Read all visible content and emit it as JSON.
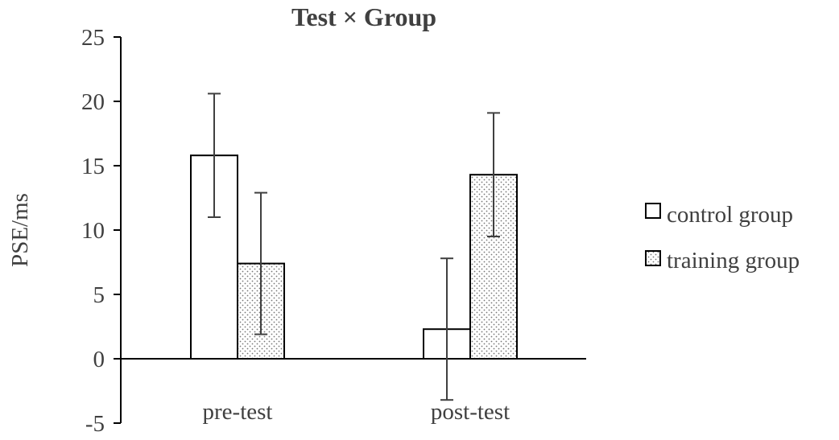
{
  "chart_data": {
    "type": "bar",
    "title": "Test × Group",
    "xlabel": "",
    "ylabel": "PSE/ms",
    "ylim": [
      -5,
      25
    ],
    "yticks": [
      25,
      20,
      15,
      10,
      5,
      0,
      -5
    ],
    "categories": [
      "pre-test",
      "post-test"
    ],
    "series": [
      {
        "name": "control group",
        "values": [
          15.8,
          2.3
        ],
        "error_low": [
          11.0,
          -3.2
        ],
        "error_high": [
          20.6,
          7.8
        ],
        "fill": "white"
      },
      {
        "name": "training group",
        "values": [
          7.4,
          14.3
        ],
        "error_low": [
          1.9,
          9.5
        ],
        "error_high": [
          12.9,
          19.1
        ],
        "fill": "dotted"
      }
    ],
    "legend_position": "right",
    "grid": false
  },
  "colors": {
    "bar_stroke": "#000000",
    "axis": "#000000",
    "text": "#404040",
    "error_bar": "#404040",
    "dot": "#777777"
  }
}
